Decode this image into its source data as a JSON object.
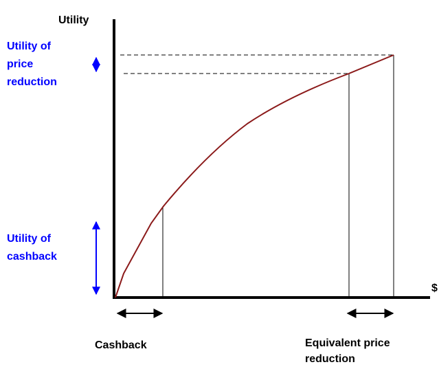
{
  "y_axis_label": "Utility",
  "x_axis_label": "$",
  "annotations": {
    "price_reduction_utility": [
      "Utility of",
      "price",
      "reduction"
    ],
    "cashback_utility": [
      "Utility of",
      "cashback"
    ],
    "cashback": "Cashback",
    "equivalent_price_reduction": [
      "Equivalent price",
      "reduction"
    ]
  }
}
